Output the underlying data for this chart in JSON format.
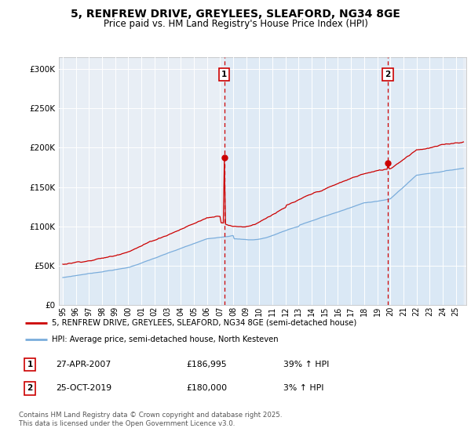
{
  "title_line1": "5, RENFREW DRIVE, GREYLEES, SLEAFORD, NG34 8GE",
  "title_line2": "Price paid vs. HM Land Registry's House Price Index (HPI)",
  "ylabel_ticks": [
    "£0",
    "£50K",
    "£100K",
    "£150K",
    "£200K",
    "£250K",
    "£300K"
  ],
  "ytick_values": [
    0,
    50000,
    100000,
    150000,
    200000,
    250000,
    300000
  ],
  "ylim": [
    0,
    315000
  ],
  "xlim_left": 1994.7,
  "xlim_right": 2025.8,
  "legend_line1": "5, RENFREW DRIVE, GREYLEES, SLEAFORD, NG34 8GE (semi-detached house)",
  "legend_line2": "HPI: Average price, semi-detached house, North Kesteven",
  "annotation1_date": "27-APR-2007",
  "annotation1_price": "£186,995",
  "annotation1_hpi": "39% ↑ HPI",
  "annotation2_date": "25-OCT-2019",
  "annotation2_price": "£180,000",
  "annotation2_hpi": "3% ↑ HPI",
  "footer": "Contains HM Land Registry data © Crown copyright and database right 2025.\nThis data is licensed under the Open Government Licence v3.0.",
  "red_color": "#cc0000",
  "blue_color": "#7aaddc",
  "blue_fill": "#d8e8f5",
  "grid_color": "#ffffff",
  "plot_bg": "#e8eef5"
}
